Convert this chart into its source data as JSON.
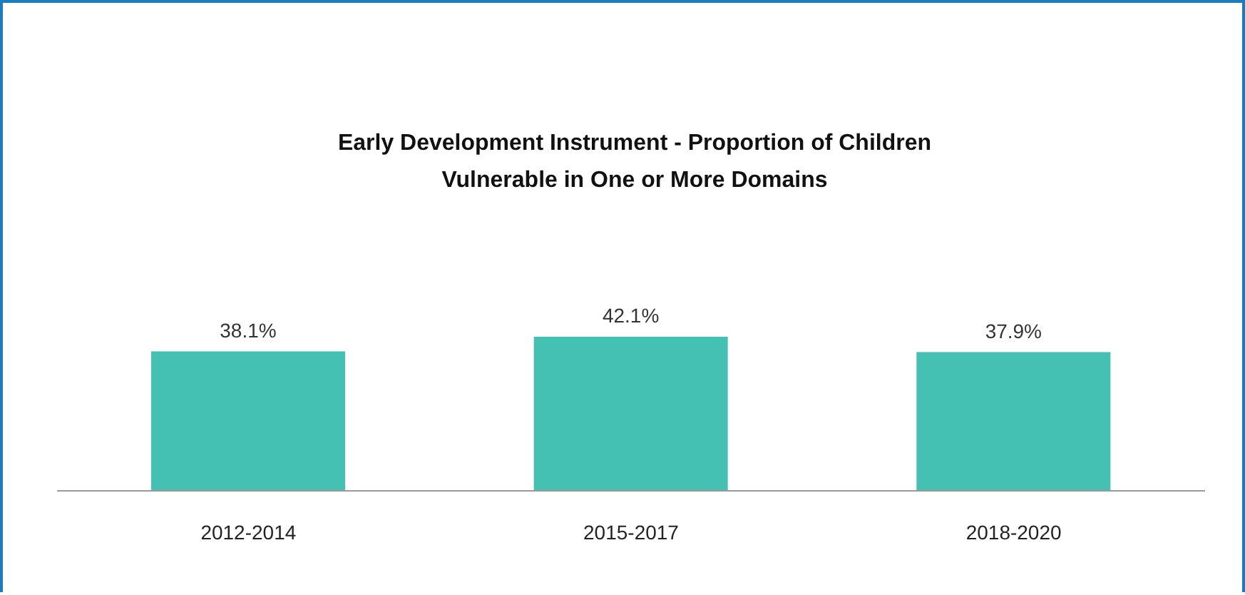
{
  "chart_data": {
    "type": "bar",
    "title": "Early Development Instrument - Proportion of Children Vulnerable in One or More Domains",
    "categories": [
      "2012-2014",
      "2015-2017",
      "2018-2020"
    ],
    "values": [
      38.1,
      42.1,
      37.9
    ],
    "value_labels": [
      "38.1%",
      "42.1%",
      "37.9%"
    ],
    "color": "#45c1b3",
    "grid": false,
    "legend": false
  }
}
